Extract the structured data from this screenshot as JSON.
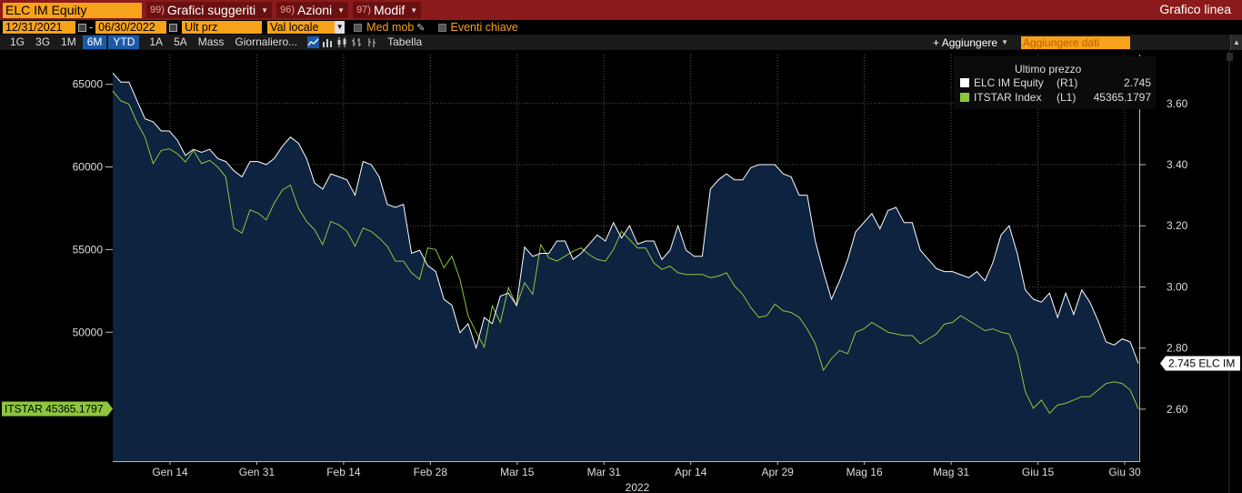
{
  "header": {
    "ticker": "ELC IM Equity",
    "menus": [
      {
        "num": "99)",
        "label": "Grafici suggeriti"
      },
      {
        "num": "96)",
        "label": "Azioni"
      },
      {
        "num": "97)",
        "label": "Modif"
      }
    ],
    "title_right": "Grafico linea"
  },
  "controls": {
    "start_date": "12/31/2021",
    "end_date": "06/30/2022",
    "date_sep": "-",
    "field": "Ult prz",
    "currency": "Val locale",
    "moving_avg": "Med mob",
    "key_events": "Eventi chiave",
    "periods": [
      "1G",
      "3G",
      "1M",
      "6M",
      "YTD",
      "1A",
      "5A",
      "Mass"
    ],
    "active_periods": [
      "6M",
      "YTD"
    ],
    "frequency": "Giornaliero...",
    "table": "Tabella",
    "add": "+ Aggiungere",
    "add_data_placeholder": "Aggiungere dati"
  },
  "colors": {
    "elc": "#ffffff",
    "itstar": "#8dc63f",
    "fill": "#0d2340",
    "accent": "#f7a21b",
    "titlebar": "#8b1a1a"
  },
  "chart_data": {
    "type": "line",
    "xlabel": "2022",
    "x_ticks": [
      "Gen 14",
      "Gen 31",
      "Feb 14",
      "Feb 28",
      "Mar 15",
      "Mar 31",
      "Apr 14",
      "Apr 29",
      "Mag 16",
      "Mag 31",
      "Giu 15",
      "Giu 30"
    ],
    "left_axis": {
      "ticks": [
        50000,
        55000,
        60000,
        65000
      ],
      "ylim": [
        42200,
        66800
      ]
    },
    "right_axis": {
      "ticks": [
        2.6,
        2.8,
        3.0,
        3.2,
        3.4,
        3.6
      ],
      "ylim": [
        2.43,
        3.76
      ]
    },
    "legend_title": "Ultimo prezzo",
    "legend": [
      {
        "name": "ELC IM Equity",
        "axis": "(R1)",
        "last": "2.745"
      },
      {
        "name": "ITSTAR Index",
        "axis": "(L1)",
        "last": "45365.1797"
      }
    ],
    "right_label": "2.745 ELC IM",
    "left_label": "ITSTAR 45365.1797",
    "series": [
      {
        "name": "ELC IM Equity",
        "axis": "right",
        "values": [
          3.7,
          3.67,
          3.67,
          3.61,
          3.55,
          3.54,
          3.51,
          3.51,
          3.48,
          3.43,
          3.45,
          3.44,
          3.45,
          3.42,
          3.41,
          3.38,
          3.36,
          3.41,
          3.41,
          3.4,
          3.42,
          3.46,
          3.49,
          3.47,
          3.42,
          3.34,
          3.32,
          3.37,
          3.36,
          3.35,
          3.3,
          3.41,
          3.4,
          3.36,
          3.27,
          3.26,
          3.27,
          3.11,
          3.12,
          3.07,
          3.05,
          2.96,
          2.94,
          2.85,
          2.88,
          2.8,
          2.9,
          2.88,
          2.97,
          2.98,
          2.94,
          3.13,
          3.1,
          3.11,
          3.11,
          3.15,
          3.15,
          3.09,
          3.11,
          3.14,
          3.17,
          3.15,
          3.21,
          3.16,
          3.2,
          3.14,
          3.15,
          3.15,
          3.09,
          3.12,
          3.2,
          3.12,
          3.1,
          3.1,
          3.32,
          3.35,
          3.37,
          3.35,
          3.35,
          3.39,
          3.4,
          3.4,
          3.4,
          3.37,
          3.36,
          3.3,
          3.3,
          3.15,
          3.05,
          2.96,
          3.02,
          3.09,
          3.18,
          3.21,
          3.24,
          3.19,
          3.25,
          3.26,
          3.21,
          3.21,
          3.12,
          3.09,
          3.06,
          3.05,
          3.05,
          3.04,
          3.03,
          3.05,
          3.02,
          3.08,
          3.17,
          3.2,
          3.11,
          2.99,
          2.96,
          2.95,
          2.98,
          2.9,
          2.98,
          2.91,
          2.99,
          2.95,
          2.89,
          2.82,
          2.81,
          2.83,
          2.82,
          2.75
        ]
      },
      {
        "name": "ITSTAR Index",
        "axis": "left",
        "values": [
          64600,
          64000,
          63800,
          62700,
          61800,
          60200,
          61000,
          61100,
          60800,
          60300,
          61000,
          60200,
          60400,
          60000,
          59400,
          56300,
          56000,
          57400,
          57200,
          56800,
          57800,
          58600,
          58900,
          57500,
          56700,
          56200,
          55300,
          56700,
          56500,
          56100,
          55200,
          56300,
          56100,
          55700,
          55200,
          54300,
          54300,
          53600,
          53200,
          55100,
          55000,
          53900,
          54600,
          53200,
          51000,
          50000,
          49100,
          51600,
          50600,
          52700,
          51600,
          53000,
          52300,
          55300,
          54500,
          54300,
          54600,
          54900,
          55100,
          54700,
          54400,
          54300,
          55000,
          56100,
          55600,
          55100,
          55100,
          54200,
          53800,
          54000,
          53600,
          53500,
          53500,
          53500,
          53300,
          53400,
          53600,
          52800,
          52300,
          51500,
          50900,
          51000,
          51700,
          51300,
          51200,
          50900,
          50200,
          49300,
          47700,
          48400,
          48900,
          48700,
          50000,
          50200,
          50600,
          50300,
          50000,
          49900,
          49800,
          49800,
          49300,
          49600,
          49900,
          50500,
          50600,
          51000,
          50700,
          50400,
          50100,
          50200,
          50000,
          49900,
          48700,
          46400,
          45400,
          45900,
          45100,
          45600,
          45700,
          45900,
          46100,
          46100,
          46500,
          46900,
          47000,
          46900,
          46500,
          45365
        ]
      }
    ]
  }
}
